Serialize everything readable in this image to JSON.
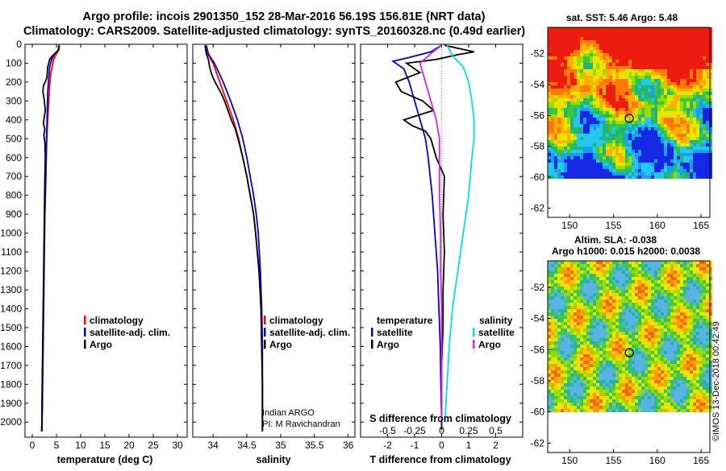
{
  "header": {
    "title_line1": "Argo profile: incois 2901350_152 28-Mar-2016 56.19S 156.81E (NRT data)",
    "title_line2": "Climatology: CARS2009. Satellite-adjusted climatology: synTS_20160328.nc (0.49d earlier)"
  },
  "colors": {
    "climatology": "#ff0000",
    "satellite": "#0000dd",
    "argo": "#000000",
    "salinity_satellite": "#00e0e0",
    "salinity_argo": "#e020e0"
  },
  "depth_axis": {
    "ticks": [
      "0",
      "100",
      "200",
      "300",
      "400",
      "500",
      "600",
      "700",
      "800",
      "900",
      "1000",
      "1100",
      "1200",
      "1300",
      "1400",
      "1500",
      "1600",
      "1700",
      "1800",
      "1900",
      "2000"
    ],
    "range": [
      0,
      2080
    ]
  },
  "chart_data": [
    {
      "type": "line",
      "id": "temperature",
      "xlabel": "temperature (deg C)",
      "xlim": [
        -1.5,
        32
      ],
      "xticks": [
        "0",
        "5",
        "10",
        "15",
        "20",
        "25",
        "30"
      ],
      "legend": [
        "climatology",
        "satellite-adj. clim.",
        "Argo"
      ],
      "series": [
        {
          "name": "climatology",
          "color": "#ff0000",
          "depth": [
            5,
            30,
            60,
            80,
            120,
            160,
            220,
            300,
            400,
            500,
            600,
            800,
            1000,
            1200,
            1400,
            1600,
            1800,
            2000,
            2050
          ],
          "values": [
            5.6,
            5.5,
            4.8,
            4.4,
            4.1,
            3.8,
            3.6,
            3.4,
            3.2,
            3.0,
            2.9,
            2.7,
            2.5,
            2.4,
            2.3,
            2.2,
            2.1,
            2.0,
            1.9
          ]
        },
        {
          "name": "satellite-adj. clim.",
          "color": "#0000dd",
          "depth": [
            5,
            30,
            55,
            80,
            120,
            180,
            250,
            350,
            450,
            550,
            700,
            900,
            1100,
            1300,
            1500,
            1700,
            1900,
            2050
          ],
          "values": [
            5.5,
            5.4,
            4.5,
            4.0,
            3.6,
            3.4,
            3.2,
            3.1,
            3.0,
            2.9,
            2.8,
            2.6,
            2.5,
            2.4,
            2.3,
            2.2,
            2.1,
            2.0
          ]
        },
        {
          "name": "Argo",
          "color": "#000000",
          "depth": [
            5,
            30,
            60,
            80,
            120,
            180,
            220,
            250,
            300,
            350,
            400,
            420,
            450,
            480,
            520,
            600,
            700,
            900,
            1100,
            1300,
            1500,
            1700,
            1900,
            2040
          ],
          "values": [
            5.5,
            5.4,
            4.2,
            3.6,
            3.2,
            3.0,
            2.3,
            2.2,
            2.5,
            2.7,
            2.4,
            2.3,
            2.6,
            2.4,
            2.6,
            2.7,
            2.6,
            2.5,
            2.4,
            2.3,
            2.2,
            2.1,
            2.0,
            2.0
          ]
        }
      ]
    },
    {
      "type": "line",
      "id": "salinity",
      "xlabel": "salinity",
      "xlim": [
        33.7,
        36.1
      ],
      "xticks": [
        "34",
        "34.5",
        "35",
        "35.5",
        "36"
      ],
      "legend": [
        "climatology",
        "satellite-adj. clim.",
        "Argo"
      ],
      "annotation": [
        "Indian ARGO",
        "PI: M Ravichandran"
      ],
      "series": [
        {
          "name": "climatology",
          "color": "#ff0000",
          "depth": [
            5,
            50,
            100,
            200,
            300,
            400,
            500,
            600,
            700,
            800,
            900,
            1000,
            1200,
            1400,
            1600,
            1800,
            2000,
            2050
          ],
          "values": [
            33.88,
            33.92,
            34.0,
            34.1,
            34.2,
            34.3,
            34.38,
            34.44,
            34.5,
            34.55,
            34.6,
            34.63,
            34.68,
            34.71,
            34.72,
            34.73,
            34.73,
            34.73
          ]
        },
        {
          "name": "satellite-adj. clim.",
          "color": "#0000dd",
          "depth": [
            5,
            50,
            100,
            200,
            300,
            400,
            500,
            600,
            700,
            800,
            900,
            1000,
            1200,
            1400,
            1600,
            1800,
            2000,
            2050
          ],
          "values": [
            33.9,
            33.93,
            34.02,
            34.15,
            34.26,
            34.36,
            34.44,
            34.5,
            34.55,
            34.6,
            34.64,
            34.67,
            34.7,
            34.72,
            34.73,
            34.73,
            34.73,
            34.73
          ]
        },
        {
          "name": "Argo",
          "color": "#000000",
          "depth": [
            5,
            50,
            80,
            120,
            160,
            200,
            260,
            300,
            350,
            400,
            450,
            500,
            600,
            700,
            800,
            900,
            1000,
            1200,
            1400,
            1600,
            1800,
            2000,
            2040
          ],
          "values": [
            33.88,
            33.9,
            33.93,
            33.95,
            33.98,
            34.03,
            34.12,
            34.17,
            34.22,
            34.27,
            34.33,
            34.37,
            34.44,
            34.5,
            34.55,
            34.6,
            34.63,
            34.68,
            34.71,
            34.72,
            34.73,
            34.73,
            34.73
          ]
        }
      ]
    },
    {
      "type": "line",
      "id": "difference",
      "xlabel": "T difference from climatology",
      "xlabel2": "S difference from climatology",
      "xlim": [
        -3,
        3
      ],
      "xticks": [
        "-2",
        "-1",
        "0",
        "1",
        "2"
      ],
      "xticks_s": [
        "-0.5",
        "-0.25",
        "0",
        "0.25",
        "0.5"
      ],
      "legend_left_title": "temperature",
      "legend_right_title": "salinity",
      "legend_left": [
        "satellite",
        "Argo"
      ],
      "legend_right": [
        "satellite",
        "Argo"
      ],
      "series": [
        {
          "name": "T satellite",
          "color": "#0000dd",
          "depth": [
            5,
            40,
            70,
            90,
            130,
            200,
            300,
            400,
            500,
            600,
            800,
            1000,
            1200,
            1400,
            1600,
            1800,
            2000
          ],
          "values": [
            0,
            -0.4,
            -1.2,
            -1.8,
            -1.4,
            -1.2,
            -1.0,
            -0.8,
            -0.6,
            -0.5,
            -0.35,
            -0.25,
            -0.15,
            -0.1,
            -0.05,
            -0.03,
            0
          ]
        },
        {
          "name": "T Argo",
          "color": "#000000",
          "depth": [
            5,
            40,
            55,
            80,
            100,
            150,
            200,
            250,
            300,
            350,
            400,
            430,
            460,
            500,
            600,
            700,
            900,
            1100,
            1300,
            1500,
            1700,
            1900,
            2040
          ],
          "values": [
            0.1,
            1.2,
            0.6,
            -0.2,
            -1.3,
            -0.8,
            -1.7,
            -1.5,
            -0.7,
            -0.3,
            -1.4,
            -1.1,
            -0.6,
            -0.4,
            -0.2,
            0.1,
            0.05,
            0.1,
            0.05,
            0.05,
            0,
            0,
            0
          ]
        },
        {
          "name": "S satellite",
          "color": "#00e0e0",
          "depth": [
            5,
            60,
            120,
            200,
            300,
            400,
            500,
            600,
            800,
            1000,
            1200,
            1400,
            1600,
            1800,
            2000
          ],
          "values": [
            0.05,
            0.1,
            0.2,
            0.25,
            0.28,
            0.3,
            0.3,
            0.28,
            0.25,
            0.2,
            0.15,
            0.1,
            0.07,
            0.05,
            0.03
          ]
        },
        {
          "name": "S Argo",
          "color": "#e020e0",
          "depth": [
            5,
            50,
            100,
            200,
            300,
            400,
            500,
            600,
            700,
            800,
            1000,
            1200,
            1400,
            1600,
            1800,
            2000
          ],
          "values": [
            0.0,
            -0.1,
            -0.2,
            -0.15,
            -0.1,
            -0.05,
            -0.02,
            -0.02,
            -0.02,
            -0.02,
            -0.01,
            -0.01,
            0.0,
            0.0,
            0.0,
            0.0
          ]
        }
      ]
    }
  ],
  "maps": [
    {
      "id": "sst",
      "title": "sat. SST: 5.46 Argo: 5.48",
      "xticks": [
        "150",
        "155",
        "160",
        "165"
      ],
      "yticks": [
        "-52",
        "-54",
        "-56",
        "-58",
        "-60",
        "-62"
      ],
      "xlim": [
        147.5,
        166
      ],
      "ylim": [
        -62.6,
        -50.3
      ]
    },
    {
      "id": "sla",
      "title": "Altim. SLA: -0.038",
      "subtitle": "Argo h1000: 0.015 h2000: 0.0038",
      "xticks": [
        "150",
        "155",
        "160",
        "165"
      ],
      "yticks": [
        "-52",
        "-54",
        "-56",
        "-58",
        "-60",
        "-62"
      ],
      "xlim": [
        147.5,
        166
      ],
      "ylim": [
        -62.6,
        -50.3
      ]
    }
  ],
  "float_position": {
    "lon": 156.81,
    "lat": -56.19
  },
  "footer": {
    "credit": "©IMOS 13-Dec-2018 00:42:49"
  }
}
